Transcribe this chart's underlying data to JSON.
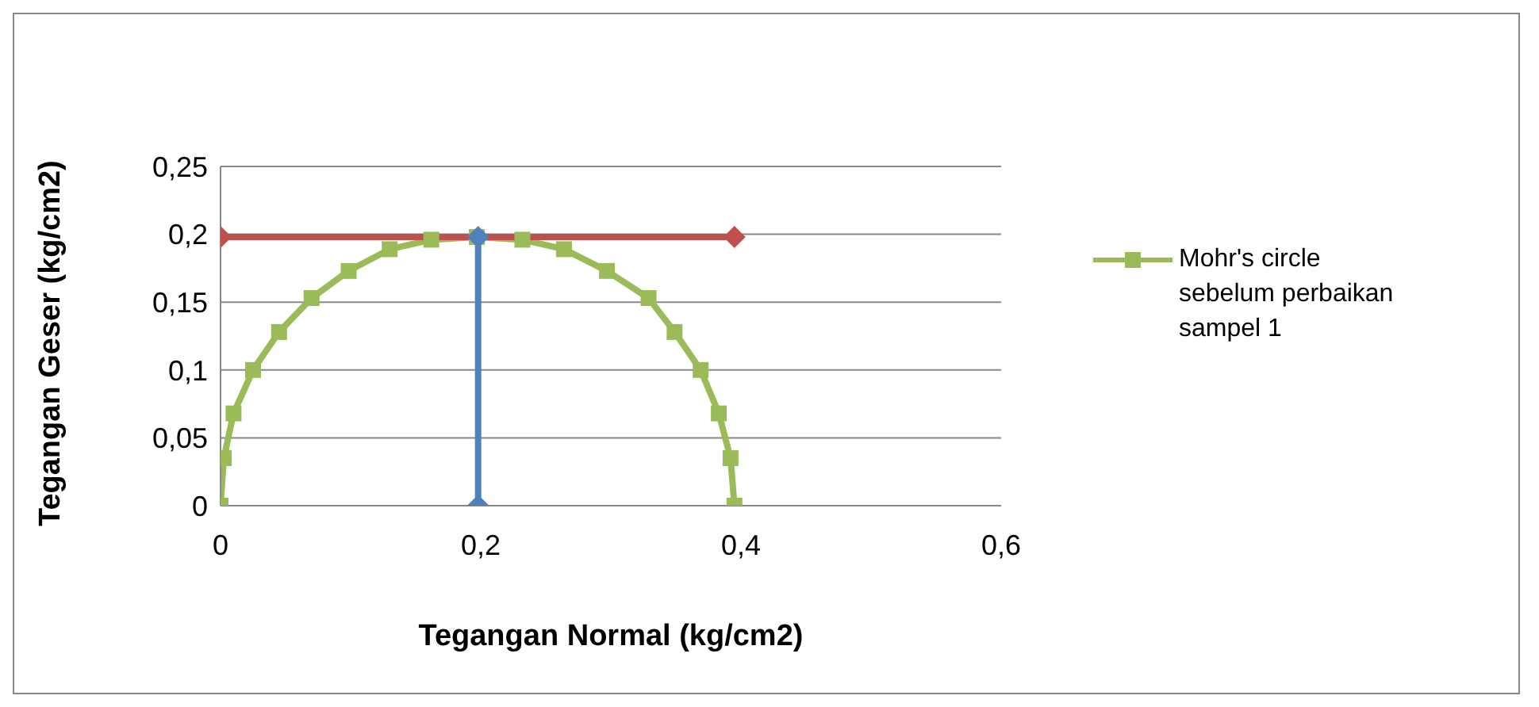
{
  "chart_data": {
    "type": "line",
    "xlabel": "Tegangan Normal  (kg/cm2)",
    "ylabel": "Tegangan Geser  (kg/cm2)",
    "xlim": [
      0,
      0.6
    ],
    "xticks": [
      0,
      {
        "value": 0.2,
        "label": "0,2"
      },
      {
        "value": 0.4,
        "label": "0,4"
      },
      {
        "value": 0.6,
        "label": "0,6"
      }
    ],
    "ylim": [
      0,
      0.25
    ],
    "yticks": [
      0,
      {
        "value": 0.05,
        "label": "0,05"
      },
      {
        "value": 0.1,
        "label": "0,1"
      },
      {
        "value": 0.15,
        "label": "0,15"
      },
      {
        "value": 0.2,
        "label": "0,2"
      },
      {
        "value": 0.25,
        "label": "0,25"
      }
    ],
    "grid": "y",
    "legend": "right",
    "series": [
      {
        "name": "Mohr's circle sebelum perbaikan sampel 1",
        "color": "#9bbb59",
        "marker": "square",
        "x": [
          0,
          0.0025,
          0.01,
          0.025,
          0.045,
          0.07,
          0.0985,
          0.13,
          0.162,
          0.197,
          0.232,
          0.264,
          0.297,
          0.329,
          0.349,
          0.369,
          0.383,
          0.392,
          0.395
        ],
        "values": [
          0,
          0.035,
          0.068,
          0.1,
          0.128,
          0.153,
          0.173,
          0.189,
          0.196,
          0.198,
          0.196,
          0.189,
          0.173,
          0.153,
          0.128,
          0.1,
          0.068,
          0.035,
          0
        ]
      },
      {
        "color": "#c0504d",
        "marker": "diamond",
        "x": [
          0,
          0.395
        ],
        "values": [
          0.198,
          0.198
        ]
      },
      {
        "color": "#4f81bd",
        "marker": "diamond",
        "x": [
          0.198,
          0.198
        ],
        "values": [
          0,
          0.198
        ]
      }
    ]
  }
}
